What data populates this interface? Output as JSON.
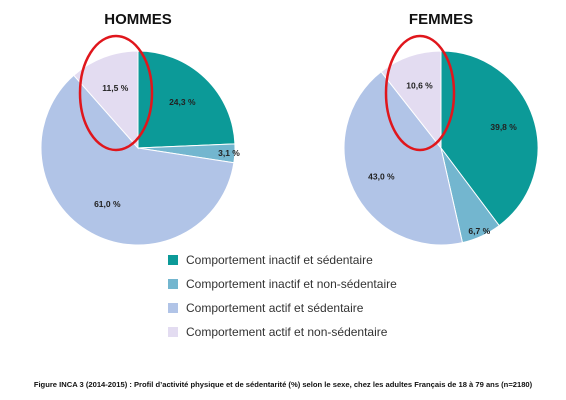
{
  "chart_data": [
    {
      "type": "pie",
      "title": "HOMMES",
      "slices": [
        {
          "label": "Comportement inactif et sédentaire",
          "value": 24.3,
          "display": "24,3 %",
          "color": "#0c9a98"
        },
        {
          "label": "Comportement inactif et non-sédentaire",
          "value": 3.1,
          "display": "3,1 %",
          "color": "#73b6cf"
        },
        {
          "label": "Comportement actif et sédentaire",
          "value": 61.0,
          "display": "61,0 %",
          "color": "#b1c4e7"
        },
        {
          "label": "Comportement actif et non-sédentaire",
          "value": 11.5,
          "display": "11,5 %",
          "color": "#e3dcf1"
        }
      ]
    },
    {
      "type": "pie",
      "title": "FEMMES",
      "slices": [
        {
          "label": "Comportement inactif et sédentaire",
          "value": 39.8,
          "display": "39,8 %",
          "color": "#0c9a98"
        },
        {
          "label": "Comportement inactif et non-sédentaire",
          "value": 6.7,
          "display": "6,7 %",
          "color": "#73b6cf"
        },
        {
          "label": "Comportement actif et sédentaire",
          "value": 43.0,
          "display": "43,0 %",
          "color": "#b1c4e7"
        },
        {
          "label": "Comportement actif et non-sédentaire",
          "value": 10.6,
          "display": "10,6 %",
          "color": "#e3dcf1"
        }
      ]
    }
  ],
  "legend": {
    "placement": "bottom-center",
    "items": [
      {
        "label": "Comportement inactif et sédentaire",
        "color": "#0c9a98"
      },
      {
        "label": "Comportement inactif et non-sédentaire",
        "color": "#73b6cf"
      },
      {
        "label": "Comportement actif et sédentaire",
        "color": "#b1c4e7"
      },
      {
        "label": "Comportement actif et non-sédentaire",
        "color": "#e3dcf1"
      }
    ]
  },
  "highlight_color": "#e0161c",
  "caption": "Figure INCA 3 (2014-2015) : Profil d’activité physique et de sédentarité (%) selon le sexe, chez les adultes Français de 18 à 79 ans (n=2180)"
}
